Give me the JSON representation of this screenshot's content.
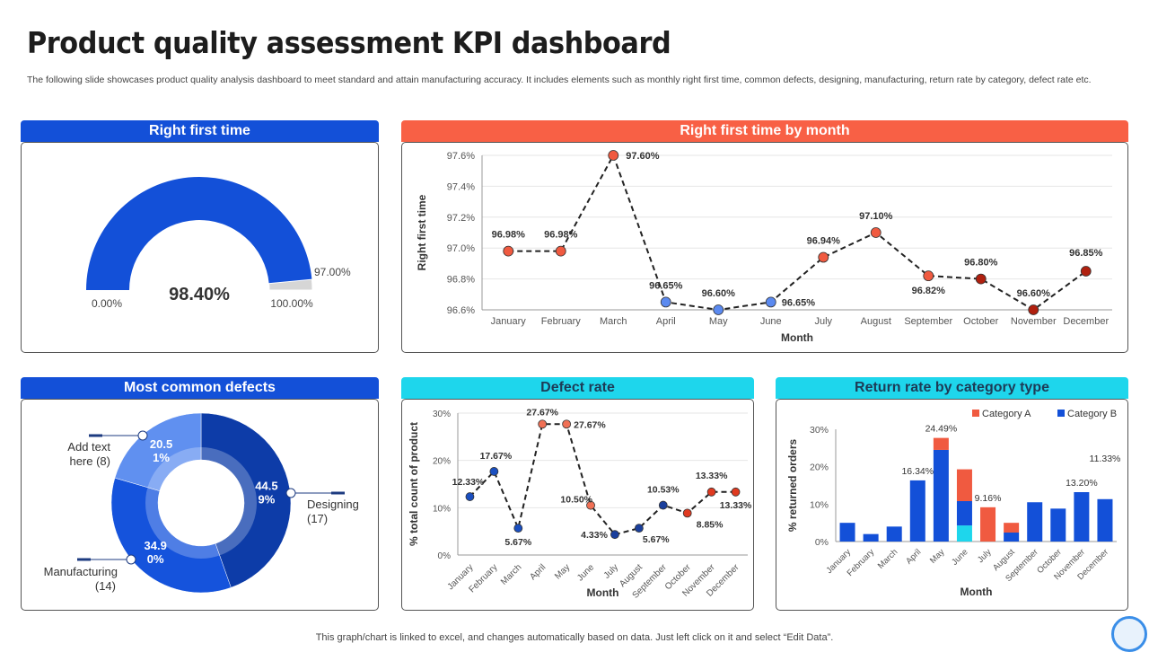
{
  "title": "Product quality assessment KPI dashboard",
  "description": "The following slide showcases product quality analysis dashboard to meet standard and attain manufacturing accuracy. It includes elements such as monthly right first time, common defects, designing, manufacturing, return rate by category,  defect rate etc.",
  "footer": "This graph/chart is linked to excel,  and changes automatically based on data. Just left click on it and select “Edit Data”.",
  "panels": {
    "rft": {
      "header": "Right first time",
      "color": "#1350d8"
    },
    "rft_month": {
      "header": "Right first time by month",
      "color": "#f86045"
    },
    "defects": {
      "header": "Most common defects",
      "color": "#1350d8"
    },
    "defect_rate": {
      "header": "Defect rate",
      "color": "#1ed6ec"
    },
    "return_rate": {
      "header": "Return rate by category type",
      "color": "#1ed6ec"
    }
  },
  "chart_data": [
    {
      "type": "gauge",
      "value": 98.4,
      "value_label": "98.40%",
      "range": [
        0,
        100
      ],
      "min_label": "0.00%",
      "max_label": "100.00%",
      "threshold": 97,
      "threshold_label": "97.00%",
      "colors": {
        "fill": "#1350d8",
        "rest": "#d6d6d6"
      }
    },
    {
      "type": "line",
      "xlabel": "Month",
      "ylabel": "Right first time",
      "ylim": [
        96.6,
        97.6
      ],
      "yticks": [
        "96.6%",
        "96.8%",
        "97.0%",
        "97.2%",
        "97.4%",
        "97.6%"
      ],
      "categories": [
        "January",
        "February",
        "March",
        "April",
        "May",
        "June",
        "July",
        "August",
        "September",
        "October",
        "November",
        "December"
      ],
      "values": [
        96.98,
        96.98,
        97.6,
        96.65,
        96.6,
        96.65,
        96.94,
        97.1,
        96.82,
        96.8,
        96.6,
        96.85
      ],
      "labels": [
        "96.98%",
        "96.98%",
        "97.60%",
        "96.65%",
        "96.60%",
        "96.65%",
        "96.94%",
        "97.10%",
        "96.82%",
        "96.80%",
        "96.60%",
        "96.85%"
      ],
      "point_colors": [
        "#f05a40",
        "#f05a40",
        "#f05a40",
        "#5b8af0",
        "#5b8af0",
        "#5b8af0",
        "#f05a40",
        "#f05a40",
        "#f05a40",
        "#b0200f",
        "#b0200f",
        "#b0200f"
      ],
      "grid": true
    },
    {
      "type": "pie",
      "donut": true,
      "slices": [
        {
          "name": "Designing",
          "count_label": "(17)",
          "value": 44.59,
          "label": "44.5\n9%",
          "color": "#0d3ca8"
        },
        {
          "name": "Manufacturing",
          "count_label": "(14)",
          "value": 34.9,
          "label": "34.9\n0%",
          "color": "#1553dc"
        },
        {
          "name": "Add text here",
          "count_label": "(8)",
          "value": 20.51,
          "label": "20.5\n1%",
          "color": "#6090f0"
        }
      ]
    },
    {
      "type": "line",
      "xlabel": "Month",
      "ylabel": "% total count of product",
      "ylim": [
        0,
        30
      ],
      "yticks": [
        "0%",
        "10%",
        "20%",
        "30%"
      ],
      "categories": [
        "January",
        "February",
        "March",
        "April",
        "May",
        "June",
        "July",
        "August",
        "September",
        "October",
        "November",
        "December"
      ],
      "values": [
        12.33,
        17.67,
        5.67,
        27.67,
        27.67,
        10.5,
        4.33,
        5.67,
        10.53,
        8.85,
        13.33,
        13.33
      ],
      "labels": [
        "12.33%",
        "17.67%",
        "5.67%",
        "27.67%",
        "27.67%",
        "10.50%",
        "4.33%",
        "5.67%",
        "10.53%",
        "8.85%",
        "13.33%",
        "13.33%"
      ],
      "point_colors": [
        "#1a4fc0",
        "#1a4fc0",
        "#1a4fc0",
        "#f07055",
        "#f07055",
        "#f07055",
        "#1a3f9c",
        "#1a3f9c",
        "#1a3f9c",
        "#e03a20",
        "#e03a20",
        "#e03a20"
      ],
      "grid": true
    },
    {
      "type": "bar",
      "stacked": true,
      "xlabel": "Month",
      "ylabel": "% returned orders",
      "ylim": [
        0,
        30
      ],
      "yticks": [
        "0%",
        "10%",
        "20%",
        "30%"
      ],
      "legend": "top-right",
      "categories": [
        "January",
        "February",
        "March",
        "April",
        "May",
        "June",
        "July",
        "August",
        "September",
        "October",
        "November",
        "December"
      ],
      "series": [
        {
          "values": [
            0,
            0,
            0,
            0,
            0,
            4.3,
            0,
            0,
            0,
            0,
            0,
            0
          ],
          "color": "#1ed6ec"
        },
        {
          "name": "Category B",
          "values": [
            5,
            2,
            4,
            16.34,
            24.49,
            6.5,
            0,
            2.4,
            10.5,
            8.8,
            13.2,
            11.33
          ],
          "color": "#1350d8"
        },
        {
          "name": "Category A",
          "values": [
            0,
            0,
            0,
            0,
            3.2,
            8.5,
            9.16,
            2.6,
            0,
            0,
            0,
            0
          ],
          "color": "#f05a40"
        }
      ],
      "labels": [
        "",
        "",
        "",
        "16.34%",
        "24.49%",
        "",
        "9.16%",
        "",
        "",
        "",
        "13.20%",
        "11.33%"
      ]
    }
  ]
}
